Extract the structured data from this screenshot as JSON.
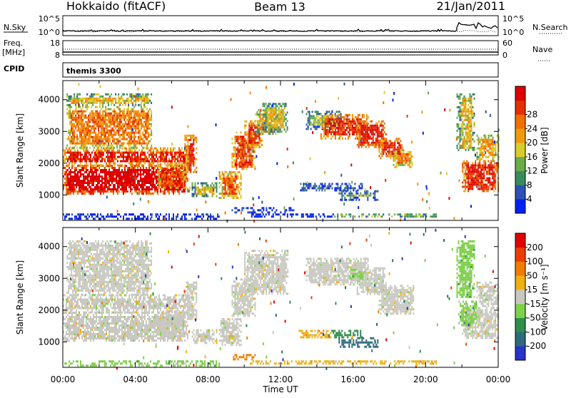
{
  "header": {
    "station": "Hokkaido (fitACF)",
    "beam": "Beam 13",
    "date": "21/Jan/2011"
  },
  "top_panels": {
    "nsky_label": "N.Sky",
    "nsky_ticks": [
      "10^5",
      "10^0"
    ],
    "nsearch_label": "N.Search",
    "nsearch_ticks": [
      "10^5",
      "10^0"
    ],
    "freq_label": "Freq.",
    "freq_unit": "[MHz]",
    "freq_ticks": [
      "18",
      "8"
    ],
    "nave_label": "Nave",
    "nave_ticks": [
      "60",
      "0"
    ],
    "cpid_label": "CPID",
    "cpid_value": "themis 3300"
  },
  "chart_data": [
    {
      "type": "heatmap",
      "name": "power",
      "ylabel": "Slant Range [km]",
      "ylim": [
        200,
        4600
      ],
      "yticks": [
        "1000",
        "2000",
        "3000",
        "4000"
      ],
      "xlim_hours": [
        0,
        24
      ],
      "colorbar": {
        "label": "Power [dB]",
        "ticks": [
          "4",
          "8",
          "12",
          "16",
          "20",
          "24",
          "28"
        ],
        "colors": [
          "#0022ee",
          "#2e4fb4",
          "#3a8a60",
          "#6aab4a",
          "#d8cc2a",
          "#ee9a10",
          "#f07000",
          "#e43000",
          "#dd0000"
        ]
      },
      "regions": [
        {
          "t0": 0.0,
          "t1": 6.9,
          "r0": 1050,
          "r1": 1950,
          "level": 8.6
        },
        {
          "t0": 0.0,
          "t1": 6.9,
          "r0": 1950,
          "r1": 2500,
          "level": 7.2
        },
        {
          "t0": 0.2,
          "t1": 4.9,
          "r0": 2500,
          "r1": 3800,
          "level": 5.8
        },
        {
          "t0": 0.2,
          "t1": 4.9,
          "r0": 3800,
          "r1": 4200,
          "level": 4.5
        },
        {
          "t0": 5.2,
          "t1": 6.8,
          "r0": 1200,
          "r1": 2000,
          "level": 6.5
        },
        {
          "t0": 6.7,
          "t1": 7.4,
          "r0": 1700,
          "r1": 2900,
          "level": 7.5
        },
        {
          "t0": 7.1,
          "t1": 8.5,
          "r0": 950,
          "r1": 1400,
          "level": 4.2
        },
        {
          "t0": 8.6,
          "t1": 9.8,
          "r0": 900,
          "r1": 1750,
          "level": 6.4
        },
        {
          "t0": 9.3,
          "t1": 10.6,
          "r0": 1800,
          "r1": 3000,
          "level": 6.8
        },
        {
          "t0": 10.0,
          "t1": 11.0,
          "r0": 2500,
          "r1": 3350,
          "level": 7.0
        },
        {
          "t0": 10.6,
          "t1": 11.9,
          "r0": 2900,
          "r1": 3700,
          "level": 5.2
        },
        {
          "t0": 11.0,
          "t1": 12.4,
          "r0": 3000,
          "r1": 3900,
          "level": 4.2
        },
        {
          "t0": 9.3,
          "t1": 12.7,
          "r0": 480,
          "r1": 620,
          "level": 2.2
        },
        {
          "t0": 10.3,
          "t1": 15.0,
          "r0": 300,
          "r1": 420,
          "level": 1.2
        },
        {
          "t0": 13.0,
          "t1": 16.5,
          "r0": 1150,
          "r1": 1380,
          "level": 2.8
        },
        {
          "t0": 15.2,
          "t1": 17.4,
          "r0": 880,
          "r1": 1150,
          "level": 2.8
        },
        {
          "t0": 14.8,
          "t1": 20.6,
          "r0": 290,
          "r1": 420,
          "level": 4.4
        },
        {
          "t0": 13.4,
          "t1": 15.3,
          "r0": 3100,
          "r1": 3650,
          "level": 3.4
        },
        {
          "t0": 14.2,
          "t1": 16.8,
          "r0": 2800,
          "r1": 3550,
          "level": 7.2
        },
        {
          "t0": 16.2,
          "t1": 17.8,
          "r0": 2500,
          "r1": 3350,
          "level": 7.8
        },
        {
          "t0": 17.4,
          "t1": 18.8,
          "r0": 2150,
          "r1": 2800,
          "level": 7.6
        },
        {
          "t0": 18.2,
          "t1": 19.3,
          "r0": 1900,
          "r1": 2450,
          "level": 6.2
        },
        {
          "t0": 21.7,
          "t1": 22.7,
          "r0": 2400,
          "r1": 4200,
          "level": 4.4
        },
        {
          "t0": 22.0,
          "t1": 24.0,
          "r0": 1100,
          "r1": 2100,
          "level": 7.6
        },
        {
          "t0": 22.8,
          "t1": 24.0,
          "r0": 2100,
          "r1": 2900,
          "level": 5.4
        },
        {
          "t0": 0.0,
          "t1": 8.6,
          "r0": 250,
          "r1": 420,
          "level": 2.0
        }
      ]
    },
    {
      "type": "heatmap",
      "name": "velocity",
      "ylabel": "Slant Range [km]",
      "ylim": [
        200,
        4600
      ],
      "yticks": [
        "1000",
        "2000",
        "3000",
        "4000"
      ],
      "xlim_hours": [
        0,
        24
      ],
      "xticks": [
        "00:00",
        "04:00",
        "08:00",
        "12:00",
        "16:00",
        "20:00",
        "00:00"
      ],
      "xlabel": "Time UT",
      "colorbar": {
        "label": "Velocity [m s⁻¹]",
        "ticks": [
          "200",
          "100",
          "50",
          "15",
          "-15",
          "-50",
          "-100",
          "-200"
        ],
        "colors": [
          "#2833c8",
          "#2e6a7a",
          "#2e8e4a",
          "#7ed14a",
          "#c8c8c0",
          "#f0b010",
          "#f07c00",
          "#ee3c00",
          "#e00000"
        ]
      },
      "regions": [
        {
          "t0": 0.0,
          "t1": 6.9,
          "r0": 1050,
          "r1": 1950,
          "level": 4
        },
        {
          "t0": 0.0,
          "t1": 6.9,
          "r0": 1950,
          "r1": 2500,
          "level": 4
        },
        {
          "t0": 0.2,
          "t1": 4.9,
          "r0": 2500,
          "r1": 4200,
          "level": 4
        },
        {
          "t0": 5.2,
          "t1": 6.8,
          "r0": 1200,
          "r1": 2000,
          "level": 4
        },
        {
          "t0": 6.7,
          "t1": 7.4,
          "r0": 1700,
          "r1": 2900,
          "level": 4
        },
        {
          "t0": 7.1,
          "t1": 8.5,
          "r0": 950,
          "r1": 1400,
          "level": 4
        },
        {
          "t0": 8.6,
          "t1": 9.8,
          "r0": 900,
          "r1": 1750,
          "level": 4
        },
        {
          "t0": 9.3,
          "t1": 10.6,
          "r0": 1800,
          "r1": 3000,
          "level": 4
        },
        {
          "t0": 10.0,
          "t1": 12.4,
          "r0": 2500,
          "r1": 3900,
          "level": 4
        },
        {
          "t0": 9.3,
          "t1": 10.8,
          "r0": 480,
          "r1": 620,
          "level": 6
        },
        {
          "t0": 10.3,
          "t1": 15.0,
          "r0": 300,
          "r1": 420,
          "level": 5
        },
        {
          "t0": 13.0,
          "t1": 14.8,
          "r0": 1150,
          "r1": 1380,
          "level": 5
        },
        {
          "t0": 14.8,
          "t1": 16.5,
          "r0": 1150,
          "r1": 1380,
          "level": 2
        },
        {
          "t0": 15.2,
          "t1": 17.4,
          "r0": 880,
          "r1": 1150,
          "level": 1
        },
        {
          "t0": 14.8,
          "t1": 20.6,
          "r0": 290,
          "r1": 420,
          "level": 5
        },
        {
          "t0": 13.4,
          "t1": 16.8,
          "r0": 2800,
          "r1": 3650,
          "level": 4
        },
        {
          "t0": 16.2,
          "t1": 17.8,
          "r0": 2500,
          "r1": 3350,
          "level": 4
        },
        {
          "t0": 15.8,
          "t1": 16.6,
          "r0": 3000,
          "r1": 3300,
          "level": 3
        },
        {
          "t0": 17.4,
          "t1": 19.3,
          "r0": 1900,
          "r1": 2800,
          "level": 4
        },
        {
          "t0": 21.7,
          "t1": 22.7,
          "r0": 2400,
          "r1": 4200,
          "level": 3
        },
        {
          "t0": 22.0,
          "t1": 24.0,
          "r0": 1100,
          "r1": 2100,
          "level": 4
        },
        {
          "t0": 22.8,
          "t1": 24.0,
          "r0": 2100,
          "r1": 2900,
          "level": 4
        },
        {
          "t0": 21.8,
          "t1": 22.8,
          "r0": 1500,
          "r1": 2300,
          "level": 3
        },
        {
          "t0": 0.0,
          "t1": 8.6,
          "r0": 250,
          "r1": 420,
          "level": 3
        }
      ]
    }
  ]
}
